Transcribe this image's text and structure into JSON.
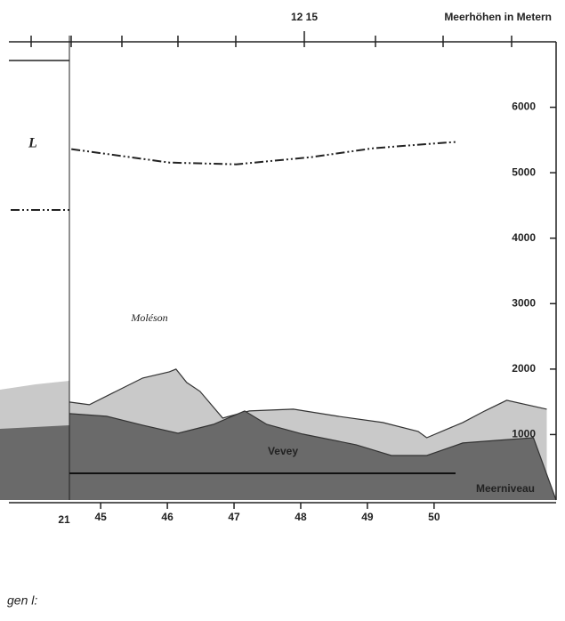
{
  "chart_data": {
    "type": "area",
    "title": "Meerhöhen in Metern",
    "top_label": "12 15",
    "legend_label": "L",
    "annotations": [
      "Moléson",
      "Vevey",
      "Meerniveau"
    ],
    "fragment_left": "21",
    "fragment_bottom": "gen l:",
    "xlim": [
      43.49,
      51.83
    ],
    "xticks": [
      45,
      46,
      47,
      48,
      49,
      50
    ],
    "ylim": [
      0,
      7000
    ],
    "yticks": [
      {
        "value": 1000,
        "label": "1000"
      },
      {
        "value": 2000,
        "label": "2000"
      },
      {
        "value": 3000,
        "label": "3000"
      },
      {
        "value": 4000,
        "label": "4000"
      },
      {
        "value": 5000,
        "label": "5000"
      },
      {
        "value": 6000,
        "label": "6000"
      }
    ],
    "series": [
      {
        "kind": "area",
        "color": "#c9c9c9",
        "x": [
          44.53,
          44.83,
          45.23,
          45.63,
          46.03,
          46.13,
          46.29,
          46.49,
          46.83,
          47.23,
          47.89,
          48.56,
          49.23,
          49.76,
          49.89,
          50.43,
          50.76,
          51.09,
          51.69
        ],
        "values": [
          1497,
          1456,
          1660,
          1864,
          1959,
          2000,
          1796,
          1660,
          1252,
          1361,
          1388,
          1279,
          1184,
          1048,
          952,
          1184,
          1361,
          1524,
          1388
        ]
      },
      {
        "kind": "area",
        "color": "#6a6a6a",
        "x": [
          44.53,
          45.09,
          45.63,
          46.16,
          46.69,
          47.16,
          47.49,
          48.03,
          48.83,
          49.36,
          49.89,
          50.43,
          50.96,
          51.49,
          51.83
        ],
        "values": [
          1320,
          1279,
          1143,
          1020,
          1156,
          1361,
          1156,
          1007,
          844,
          680,
          680,
          871,
          912,
          952,
          0
        ]
      },
      {
        "kind": "line",
        "name": "L",
        "color": "#222222",
        "x": [
          44.56,
          46.03,
          47.03,
          48.16,
          49.09,
          50.12,
          50.32
        ],
        "values": [
          5361,
          5156,
          5129,
          5238,
          5374,
          5456,
          5469
        ]
      }
    ]
  }
}
